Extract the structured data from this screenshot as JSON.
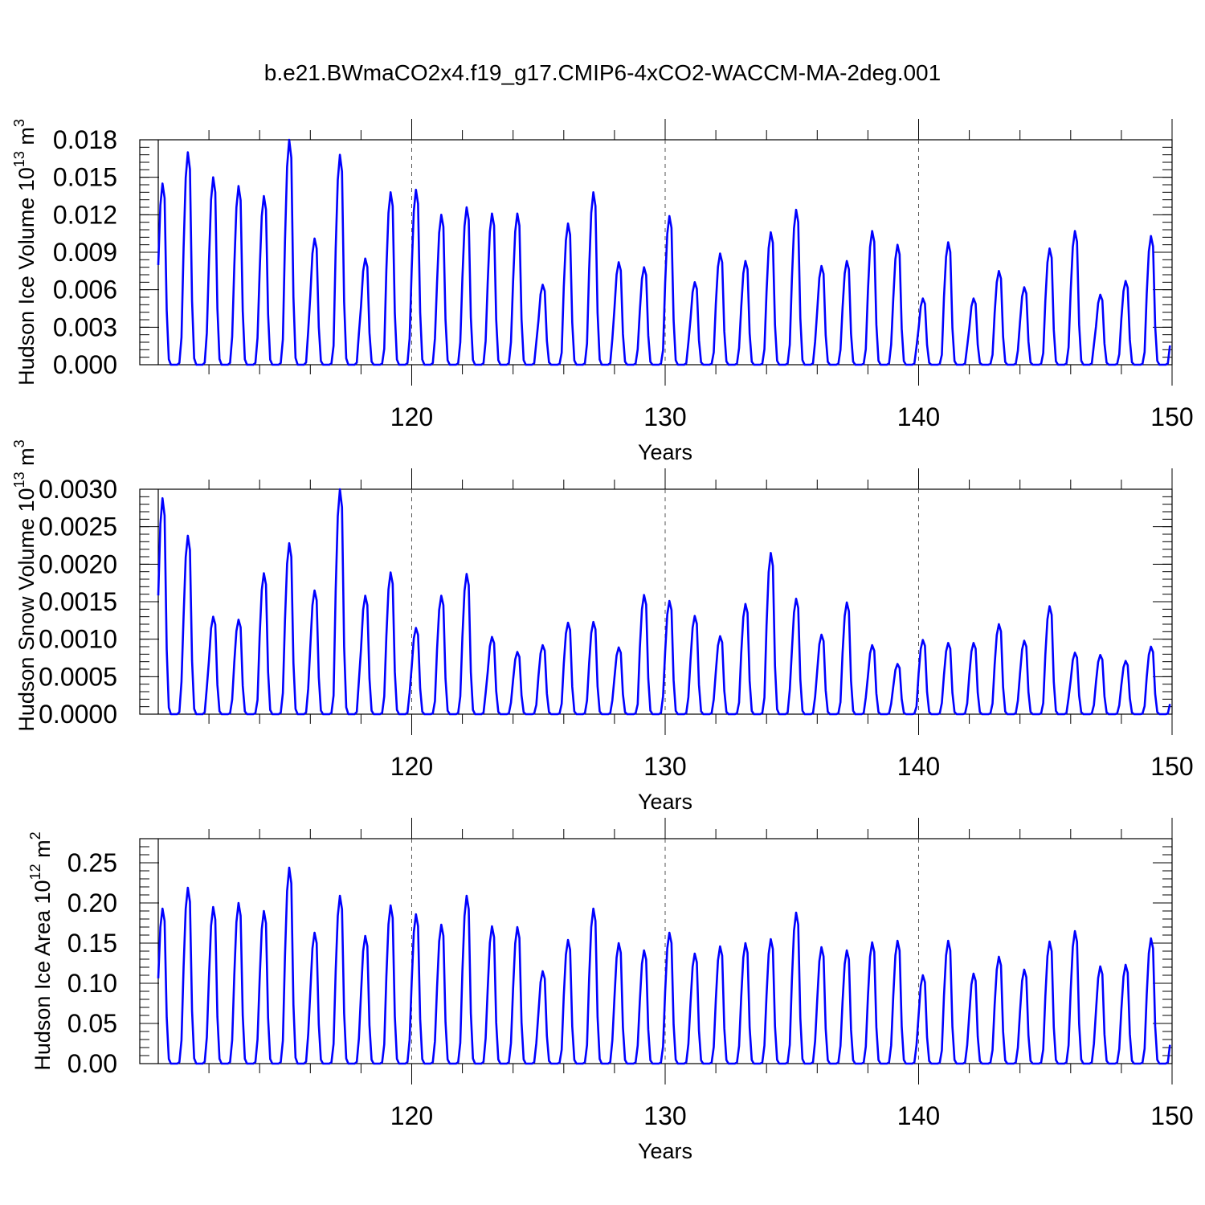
{
  "chart_data": {
    "title": "b.e21.BWmaCO2x4.f19_g17.CMIP6-4xCO2-WACCM-MA-2deg.001",
    "type": "line",
    "series_color": "#0000ff",
    "x_start": 110.0,
    "x_step": 0.0833333,
    "xlim": [
      110.0,
      150.0
    ],
    "xticks": [
      120,
      130,
      140,
      150
    ],
    "xlabel": "Years",
    "grid": "dashed vertical lines at x ticks",
    "panels": [
      {
        "name": "ice-volume",
        "ylabel": {
          "text": "Hudson Ice Volume 10",
          "exponent": "13",
          "unit": " m",
          "unit_exponent": "3"
        },
        "ylim": [
          0,
          0.018
        ],
        "yticks": [
          "0.000",
          "0.003",
          "0.006",
          "0.009",
          "0.012",
          "0.015",
          "0.018"
        ],
        "annual_maxima": [
          0.0145,
          0.017,
          0.015,
          0.0143,
          0.0135,
          0.018,
          0.0101,
          0.0168,
          0.0085,
          0.0138,
          0.014,
          0.012,
          0.0126,
          0.0121,
          0.0121,
          0.0064,
          0.0113,
          0.0138,
          0.0082,
          0.0078,
          0.0119,
          0.0066,
          0.0089,
          0.0083,
          0.0106,
          0.0124,
          0.0079,
          0.0083,
          0.0107,
          0.0096,
          0.0053,
          0.0098,
          0.0053,
          0.0075,
          0.0062,
          0.0093,
          0.0107,
          0.0056,
          0.0067,
          0.0103
        ]
      },
      {
        "name": "snow-volume",
        "ylabel": {
          "text": "Hudson Snow Volume 10",
          "exponent": "13",
          "unit": " m",
          "unit_exponent": "3"
        },
        "ylim": [
          0,
          0.003
        ],
        "yticks": [
          "0.0000",
          "0.0005",
          "0.0010",
          "0.0015",
          "0.0020",
          "0.0025",
          "0.0030"
        ],
        "annual_maxima": [
          0.00288,
          0.00238,
          0.0013,
          0.00126,
          0.00188,
          0.00228,
          0.00165,
          0.003,
          0.00158,
          0.00189,
          0.00115,
          0.00158,
          0.00187,
          0.00103,
          0.00083,
          0.00092,
          0.00122,
          0.00123,
          0.00089,
          0.00159,
          0.00151,
          0.00131,
          0.00104,
          0.00147,
          0.00215,
          0.00154,
          0.00106,
          0.00149,
          0.00092,
          0.00067,
          0.00099,
          0.00095,
          0.00095,
          0.0012,
          0.00098,
          0.00144,
          0.00082,
          0.00079,
          0.00071,
          0.0009
        ]
      },
      {
        "name": "ice-area",
        "ylabel": {
          "text": "Hudson Ice Area 10",
          "exponent": "12",
          "unit": " m",
          "unit_exponent": "2"
        },
        "ylim": [
          0,
          0.28
        ],
        "yticks": [
          "0.00",
          "0.05",
          "0.10",
          "0.15",
          "0.20",
          "0.25"
        ],
        "annual_maxima": [
          0.193,
          0.219,
          0.195,
          0.2,
          0.19,
          0.244,
          0.163,
          0.209,
          0.159,
          0.197,
          0.186,
          0.173,
          0.209,
          0.171,
          0.17,
          0.115,
          0.154,
          0.193,
          0.15,
          0.141,
          0.163,
          0.137,
          0.146,
          0.15,
          0.155,
          0.188,
          0.145,
          0.141,
          0.151,
          0.153,
          0.11,
          0.153,
          0.112,
          0.133,
          0.117,
          0.152,
          0.165,
          0.121,
          0.123,
          0.156
        ]
      }
    ]
  }
}
